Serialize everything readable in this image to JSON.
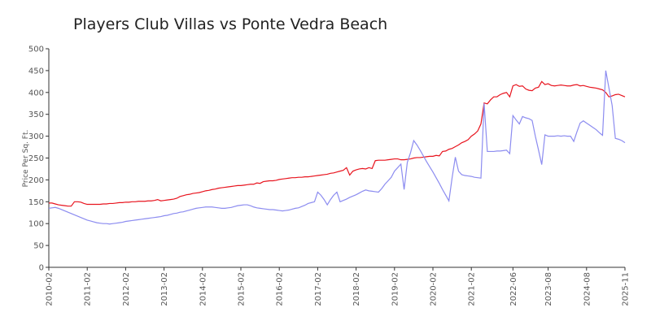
{
  "chart_data": {
    "type": "line",
    "title": "Players Club Villas vs Ponte Vedra Beach",
    "y_label": "Price Per Sq. Ft.",
    "categories": [
      "2010-02",
      null,
      null,
      null,
      null,
      null,
      null,
      null,
      null,
      null,
      null,
      null,
      "2011-02",
      null,
      null,
      null,
      null,
      null,
      null,
      null,
      null,
      null,
      null,
      null,
      "2012-02",
      null,
      null,
      null,
      null,
      null,
      null,
      null,
      null,
      null,
      null,
      null,
      "2013-02",
      null,
      null,
      null,
      null,
      null,
      null,
      null,
      null,
      null,
      null,
      null,
      "2014-02",
      null,
      null,
      null,
      null,
      null,
      null,
      null,
      null,
      null,
      null,
      null,
      "2015-02",
      null,
      null,
      null,
      null,
      null,
      null,
      null,
      null,
      null,
      null,
      null,
      "2016-02",
      null,
      null,
      null,
      null,
      null,
      null,
      null,
      null,
      null,
      null,
      null,
      "2017-02",
      null,
      null,
      null,
      null,
      null,
      null,
      null,
      null,
      null,
      null,
      null,
      "2018-02",
      null,
      null,
      null,
      null,
      null,
      null,
      null,
      null,
      null,
      null,
      null,
      "2019-02",
      null,
      null,
      null,
      null,
      null,
      null,
      null,
      null,
      null,
      null,
      null,
      "2020-02",
      null,
      null,
      null,
      null,
      null,
      null,
      null,
      null,
      null,
      null,
      null,
      "2021-02",
      null,
      null,
      null,
      null,
      null,
      null,
      null,
      null,
      null,
      null,
      null,
      null,
      "2022-06",
      null,
      null,
      null,
      null,
      null,
      null,
      null,
      null,
      null,
      null,
      "2023-08",
      null,
      null,
      null,
      null,
      null,
      null,
      null,
      null,
      null,
      null,
      null,
      "2024-08",
      null,
      null,
      null,
      null,
      null,
      null,
      null,
      null,
      null,
      null,
      null,
      "2025-11"
    ],
    "series": [
      {
        "color": "#e8141e",
        "values": [
          147,
          147,
          145,
          143,
          142,
          141,
          140,
          140,
          150,
          150,
          149,
          146,
          144,
          144,
          144,
          144,
          144,
          145,
          145,
          146,
          146,
          147,
          148,
          148,
          149,
          149,
          150,
          150,
          151,
          151,
          151,
          152,
          152,
          153,
          155,
          152,
          153,
          154,
          155,
          156,
          158,
          162,
          164,
          166,
          167,
          169,
          170,
          171,
          173,
          175,
          176,
          178,
          179,
          181,
          182,
          183,
          184,
          185,
          186,
          187,
          187,
          188,
          189,
          190,
          190,
          193,
          192,
          196,
          197,
          198,
          198,
          199,
          201,
          202,
          203,
          204,
          205,
          205,
          206,
          206,
          207,
          207,
          208,
          209,
          210,
          211,
          212,
          213,
          215,
          216,
          218,
          220,
          222,
          228,
          211,
          220,
          223,
          225,
          226,
          225,
          228,
          226,
          244,
          245,
          245,
          245,
          246,
          247,
          248,
          248,
          246,
          246,
          247,
          248,
          250,
          251,
          251,
          252,
          253,
          254,
          254,
          256,
          255,
          265,
          266,
          270,
          272,
          276,
          280,
          285,
          288,
          292,
          300,
          305,
          312,
          328,
          376,
          374,
          383,
          390,
          390,
          395,
          398,
          400,
          390,
          415,
          418,
          414,
          415,
          408,
          405,
          404,
          410,
          412,
          425,
          418,
          420,
          416,
          415,
          416,
          417,
          416,
          415,
          415,
          417,
          418,
          415,
          416,
          414,
          412,
          411,
          410,
          408,
          406,
          400,
          390,
          392,
          395,
          396,
          393,
          390
        ]
      },
      {
        "color": "#8c8cf0",
        "values": [
          135,
          136,
          137,
          135,
          132,
          129,
          126,
          123,
          120,
          117,
          114,
          111,
          108,
          106,
          104,
          102,
          101,
          100,
          100,
          99,
          100,
          101,
          102,
          103,
          105,
          106,
          107,
          108,
          109,
          110,
          111,
          112,
          113,
          114,
          115,
          116,
          118,
          119,
          121,
          123,
          124,
          126,
          127,
          129,
          131,
          133,
          135,
          136,
          137,
          138,
          138,
          138,
          137,
          136,
          135,
          135,
          136,
          137,
          139,
          141,
          142,
          143,
          143,
          141,
          138,
          136,
          135,
          134,
          133,
          132,
          132,
          131,
          130,
          129,
          130,
          131,
          133,
          135,
          136,
          139,
          142,
          146,
          148,
          150,
          172,
          165,
          155,
          143,
          155,
          165,
          172,
          150,
          153,
          156,
          160,
          163,
          166,
          170,
          174,
          177,
          175,
          174,
          173,
          172,
          180,
          190,
          198,
          206,
          220,
          228,
          236,
          178,
          240,
          262,
          290,
          280,
          268,
          255,
          242,
          230,
          218,
          205,
          192,
          178,
          165,
          152,
          205,
          252,
          220,
          212,
          210,
          209,
          208,
          206,
          205,
          204,
          375,
          265,
          265,
          265,
          266,
          266,
          267,
          268,
          260,
          347,
          337,
          328,
          345,
          342,
          340,
          336,
          300,
          268,
          235,
          303,
          300,
          300,
          300,
          301,
          300,
          301,
          300,
          300,
          288,
          310,
          330,
          335,
          330,
          325,
          320,
          315,
          308,
          302,
          450,
          410,
          370,
          295,
          293,
          290,
          285
        ]
      }
    ],
    "ylim": [
      0,
      500
    ],
    "yticks": [
      0,
      50,
      100,
      150,
      200,
      250,
      300,
      350,
      400,
      450,
      500
    ]
  }
}
